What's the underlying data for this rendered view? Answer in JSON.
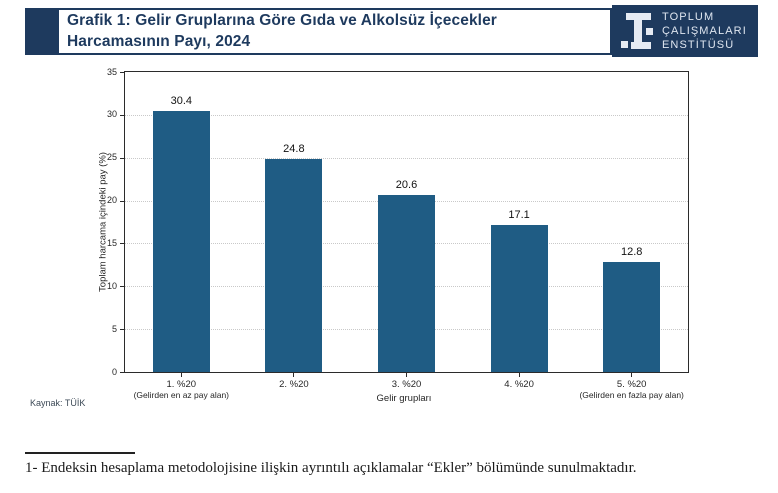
{
  "header": {
    "title": "Grafik 1: Gelir Gruplarına Göre Gıda ve Alkolsüz İçecekler Harcamasının Payı, 2024",
    "logo": {
      "icon": "tce-institute-logo-icon",
      "line1": "TOPLUM",
      "line2": "ÇALIŞMALARI",
      "line3": "ENSTİTÜSÜ"
    }
  },
  "colors": {
    "navy": "#1e3a5e",
    "bar": "#1f5c84",
    "grid": "#c9c9c9",
    "spine": "#2b2b2b"
  },
  "chart_data": {
    "type": "bar",
    "categories": [
      {
        "label": "1. %20",
        "sublabel": "(Gelirden en az pay alan)"
      },
      {
        "label": "2. %20",
        "sublabel": ""
      },
      {
        "label": "3. %20",
        "sublabel": ""
      },
      {
        "label": "4. %20",
        "sublabel": ""
      },
      {
        "label": "5. %20",
        "sublabel": "(Gelirden en fazla pay alan)"
      }
    ],
    "values": [
      30.4,
      24.8,
      20.6,
      17.1,
      12.8
    ],
    "value_labels": [
      "30.4",
      "24.8",
      "20.6",
      "17.1",
      "12.8"
    ],
    "title": "",
    "xlabel": "Gelir grupları",
    "ylabel": "Toplam harcama içindeki pay (%)",
    "ylim": [
      0,
      35
    ],
    "yticks": [
      0,
      5,
      10,
      15,
      20,
      25,
      30,
      35
    ],
    "grid": "horizontal-dotted",
    "legend": "none",
    "bar_color": "#1f5c84"
  },
  "source": "Kaynak: TÜİK",
  "footnote": "1- Endeksin hesaplama metodolojisine ilişkin ayrıntılı açıklamalar “Ekler” bölümünde sunulmaktadır."
}
